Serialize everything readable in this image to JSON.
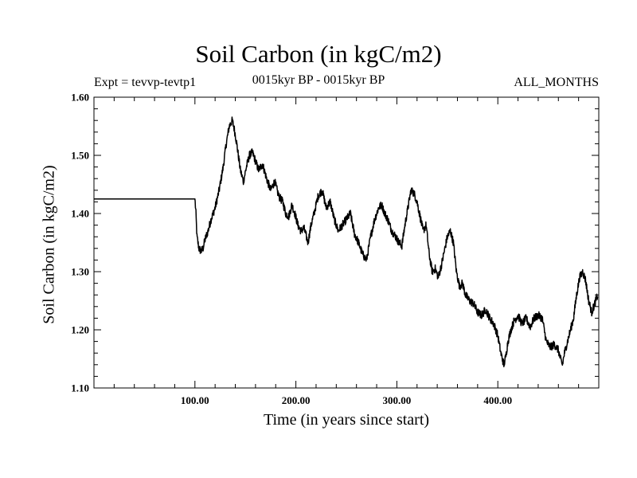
{
  "header": {
    "title": "Soil Carbon (in kgC/m2)",
    "experiment": "Expt = tevvp-tevtp1",
    "period": "0015kyr BP - 0015kyr BP",
    "months": "ALL_MONTHS"
  },
  "chart_data": {
    "type": "line",
    "title": "Soil Carbon (in kgC/m2)",
    "xlabel": "Time (in years since start)",
    "ylabel": "Soil Carbon (in kgC/m2)",
    "xlim": [
      0,
      500
    ],
    "ylim": [
      1.1,
      1.6
    ],
    "x_ticks": [
      100,
      200,
      300,
      400
    ],
    "x_tick_labels": [
      "100.00",
      "200.00",
      "300.00",
      "400.00"
    ],
    "y_ticks": [
      1.1,
      1.2,
      1.3,
      1.4,
      1.5,
      1.6
    ],
    "y_tick_labels": [
      "1.10",
      "1.20",
      "1.30",
      "1.40",
      "1.50",
      "1.60"
    ],
    "grid": false,
    "series": [
      {
        "name": "Soil Carbon",
        "color": "#000000",
        "x": [
          0,
          100,
          101,
          102,
          104,
          106,
          108,
          110,
          113,
          116,
          120,
          124,
          128,
          131,
          134,
          137,
          139,
          141,
          143,
          145,
          148,
          151,
          154,
          157,
          160,
          163,
          167,
          171,
          175,
          179,
          183,
          187,
          190,
          193,
          196,
          199,
          202,
          205,
          208,
          212,
          215,
          218,
          222,
          226,
          230,
          234,
          238,
          242,
          246,
          250,
          254,
          258,
          262,
          266,
          270,
          274,
          278,
          282,
          285,
          288,
          291,
          295,
          299,
          302,
          305,
          308,
          311,
          314,
          317,
          320,
          323,
          326,
          329,
          332,
          335,
          338,
          341,
          344,
          347,
          350,
          353,
          356,
          359,
          362,
          365,
          368,
          372,
          376,
          380,
          384,
          388,
          392,
          396,
          400,
          403,
          406,
          408,
          410,
          413,
          416,
          420,
          424,
          428,
          432,
          436,
          440,
          444,
          448,
          452,
          456,
          460,
          462,
          464,
          466,
          469,
          472,
          475,
          478,
          481,
          484,
          487,
          490,
          493,
          496,
          499
        ],
        "y": [
          1.425,
          1.425,
          1.4,
          1.36,
          1.34,
          1.335,
          1.34,
          1.355,
          1.37,
          1.39,
          1.41,
          1.44,
          1.48,
          1.52,
          1.55,
          1.56,
          1.545,
          1.525,
          1.5,
          1.475,
          1.455,
          1.48,
          1.5,
          1.505,
          1.49,
          1.475,
          1.485,
          1.46,
          1.44,
          1.455,
          1.43,
          1.42,
          1.4,
          1.395,
          1.415,
          1.4,
          1.38,
          1.37,
          1.375,
          1.35,
          1.38,
          1.4,
          1.43,
          1.44,
          1.41,
          1.42,
          1.39,
          1.37,
          1.38,
          1.39,
          1.4,
          1.365,
          1.35,
          1.33,
          1.32,
          1.36,
          1.39,
          1.41,
          1.415,
          1.4,
          1.39,
          1.37,
          1.36,
          1.35,
          1.345,
          1.38,
          1.41,
          1.44,
          1.435,
          1.42,
          1.395,
          1.37,
          1.38,
          1.33,
          1.3,
          1.305,
          1.29,
          1.31,
          1.335,
          1.36,
          1.37,
          1.35,
          1.3,
          1.275,
          1.28,
          1.26,
          1.25,
          1.245,
          1.23,
          1.225,
          1.235,
          1.22,
          1.21,
          1.19,
          1.16,
          1.14,
          1.155,
          1.18,
          1.2,
          1.215,
          1.225,
          1.21,
          1.22,
          1.205,
          1.22,
          1.225,
          1.22,
          1.18,
          1.17,
          1.175,
          1.165,
          1.15,
          1.14,
          1.16,
          1.18,
          1.2,
          1.22,
          1.26,
          1.29,
          1.3,
          1.285,
          1.25,
          1.23,
          1.245,
          1.26
        ]
      }
    ]
  }
}
